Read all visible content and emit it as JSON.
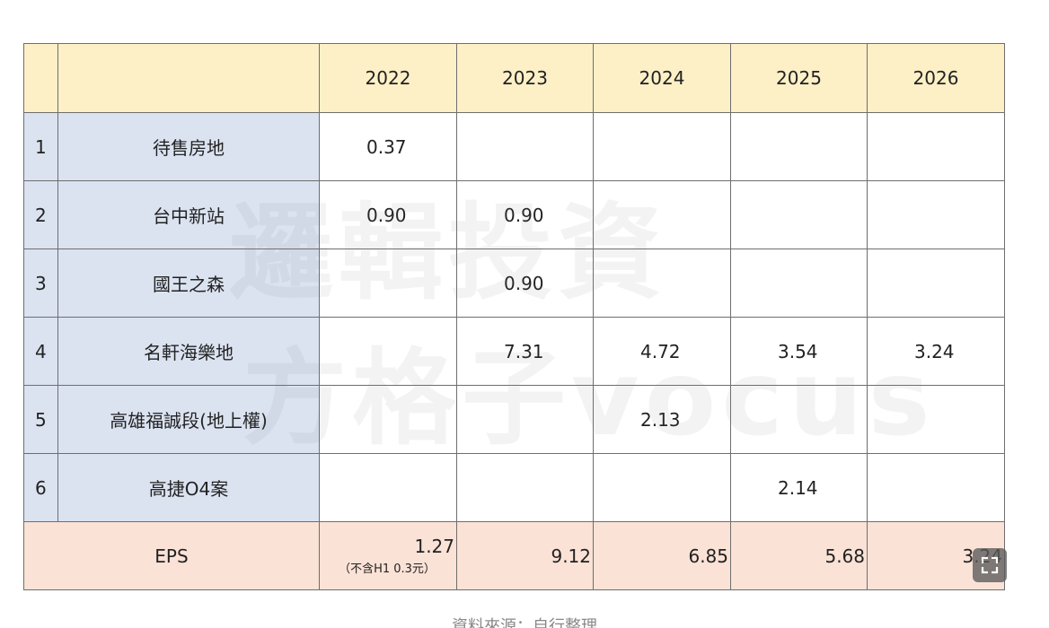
{
  "table": {
    "years": [
      "2022",
      "2023",
      "2024",
      "2025",
      "2026"
    ],
    "rows": [
      {
        "idx": "1",
        "name": "待售房地",
        "values": [
          "0.37",
          "",
          "",
          "",
          ""
        ]
      },
      {
        "idx": "2",
        "name": "台中新站",
        "values": [
          "0.90",
          "0.90",
          "",
          "",
          ""
        ]
      },
      {
        "idx": "3",
        "name": "國王之森",
        "values": [
          "",
          "0.90",
          "",
          "",
          ""
        ]
      },
      {
        "idx": "4",
        "name": "名軒海樂地",
        "values": [
          "",
          "7.31",
          "4.72",
          "3.54",
          "3.24"
        ]
      },
      {
        "idx": "5",
        "name": "高雄福誠段(地上權)",
        "values": [
          "",
          "",
          "2.13",
          "",
          ""
        ]
      },
      {
        "idx": "6",
        "name": "高捷O4案",
        "values": [
          "",
          "",
          "",
          "2.14",
          ""
        ]
      }
    ],
    "eps": {
      "label": "EPS",
      "values": [
        "1.27",
        "9.12",
        "6.85",
        "5.68",
        "3.24"
      ],
      "note_2022": "（不含H1 0.3元）"
    }
  },
  "watermark": {
    "line1": "邏輯投資",
    "line2": "方格子vocus"
  },
  "footer": {
    "source": "資料來源：自行整理"
  },
  "icons": {
    "expand": "expand-icon"
  }
}
